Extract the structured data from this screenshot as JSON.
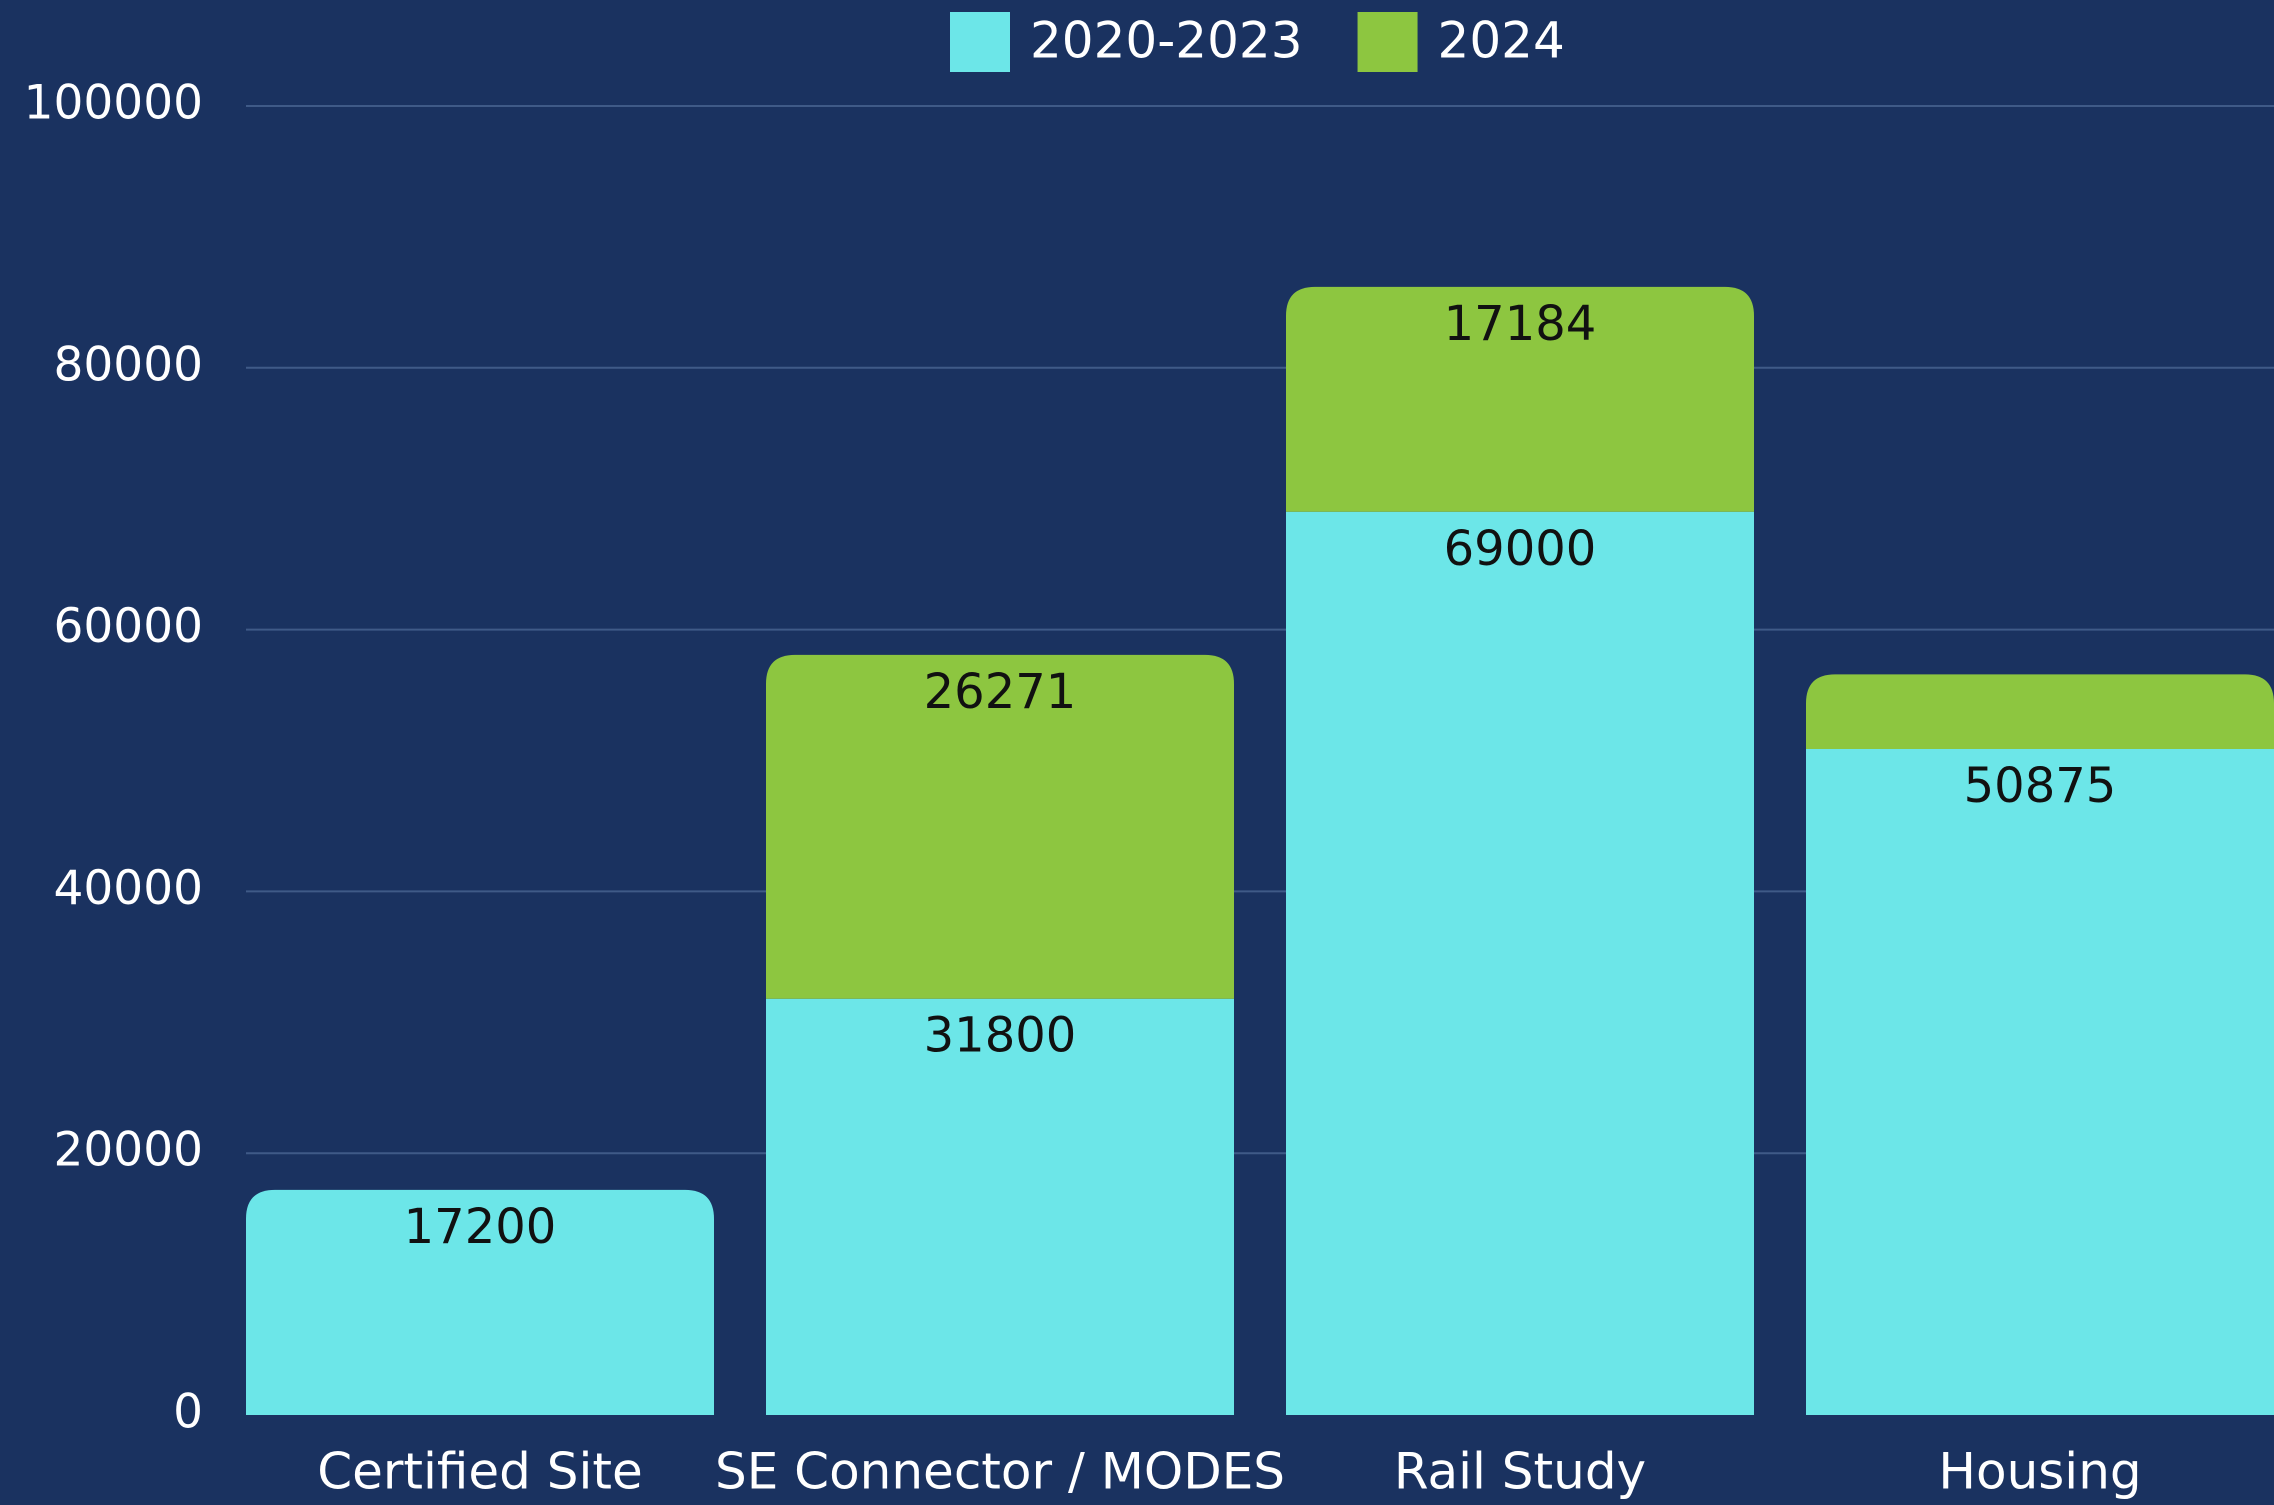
{
  "chart_data": {
    "type": "stacked_bar",
    "categories": [
      "Certified Site",
      "SE Connector / MODES",
      "Rail Study",
      "Housing"
    ],
    "series": [
      {
        "name": "2020-2023",
        "color": "#6ce6e8",
        "values": [
          17200,
          31800,
          69000,
          50875
        ]
      },
      {
        "name": "2024",
        "color": "#8dc640",
        "values": [
          null,
          26271,
          17184,
          5700
        ],
        "value_labels": [
          null,
          "26271",
          "17184",
          null
        ]
      }
    ],
    "ylim": [
      0,
      100000
    ],
    "yticks": [
      0,
      20000,
      40000,
      60000,
      80000,
      100000
    ],
    "grid": true,
    "legend": "top"
  }
}
